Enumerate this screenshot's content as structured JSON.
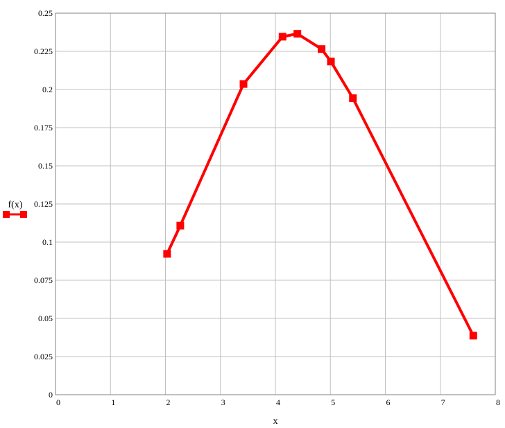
{
  "chart_data": {
    "type": "line",
    "xlabel": "x",
    "ylabel": "",
    "xlim": [
      0,
      8
    ],
    "ylim": [
      0,
      0.25
    ],
    "x_ticks": [
      "0",
      "1",
      "2",
      "3",
      "4",
      "5",
      "6",
      "7",
      "8"
    ],
    "y_ticks": [
      "0",
      "0.025",
      "0.05",
      "0.075",
      "0.1",
      "0.125",
      "0.15",
      "0.175",
      "0.2",
      "0.225",
      "0.25"
    ],
    "grid": true,
    "legend_position": "left",
    "series": [
      {
        "name": "f(x)",
        "color": "#ff0000",
        "marker": "square",
        "x": [
          2.03,
          2.27,
          3.42,
          4.13,
          4.4,
          4.84,
          5.01,
          5.41,
          7.6
        ],
        "y": [
          0.0923,
          0.1108,
          0.2036,
          0.2346,
          0.2365,
          0.2265,
          0.2183,
          0.1943,
          0.0387
        ]
      }
    ]
  }
}
